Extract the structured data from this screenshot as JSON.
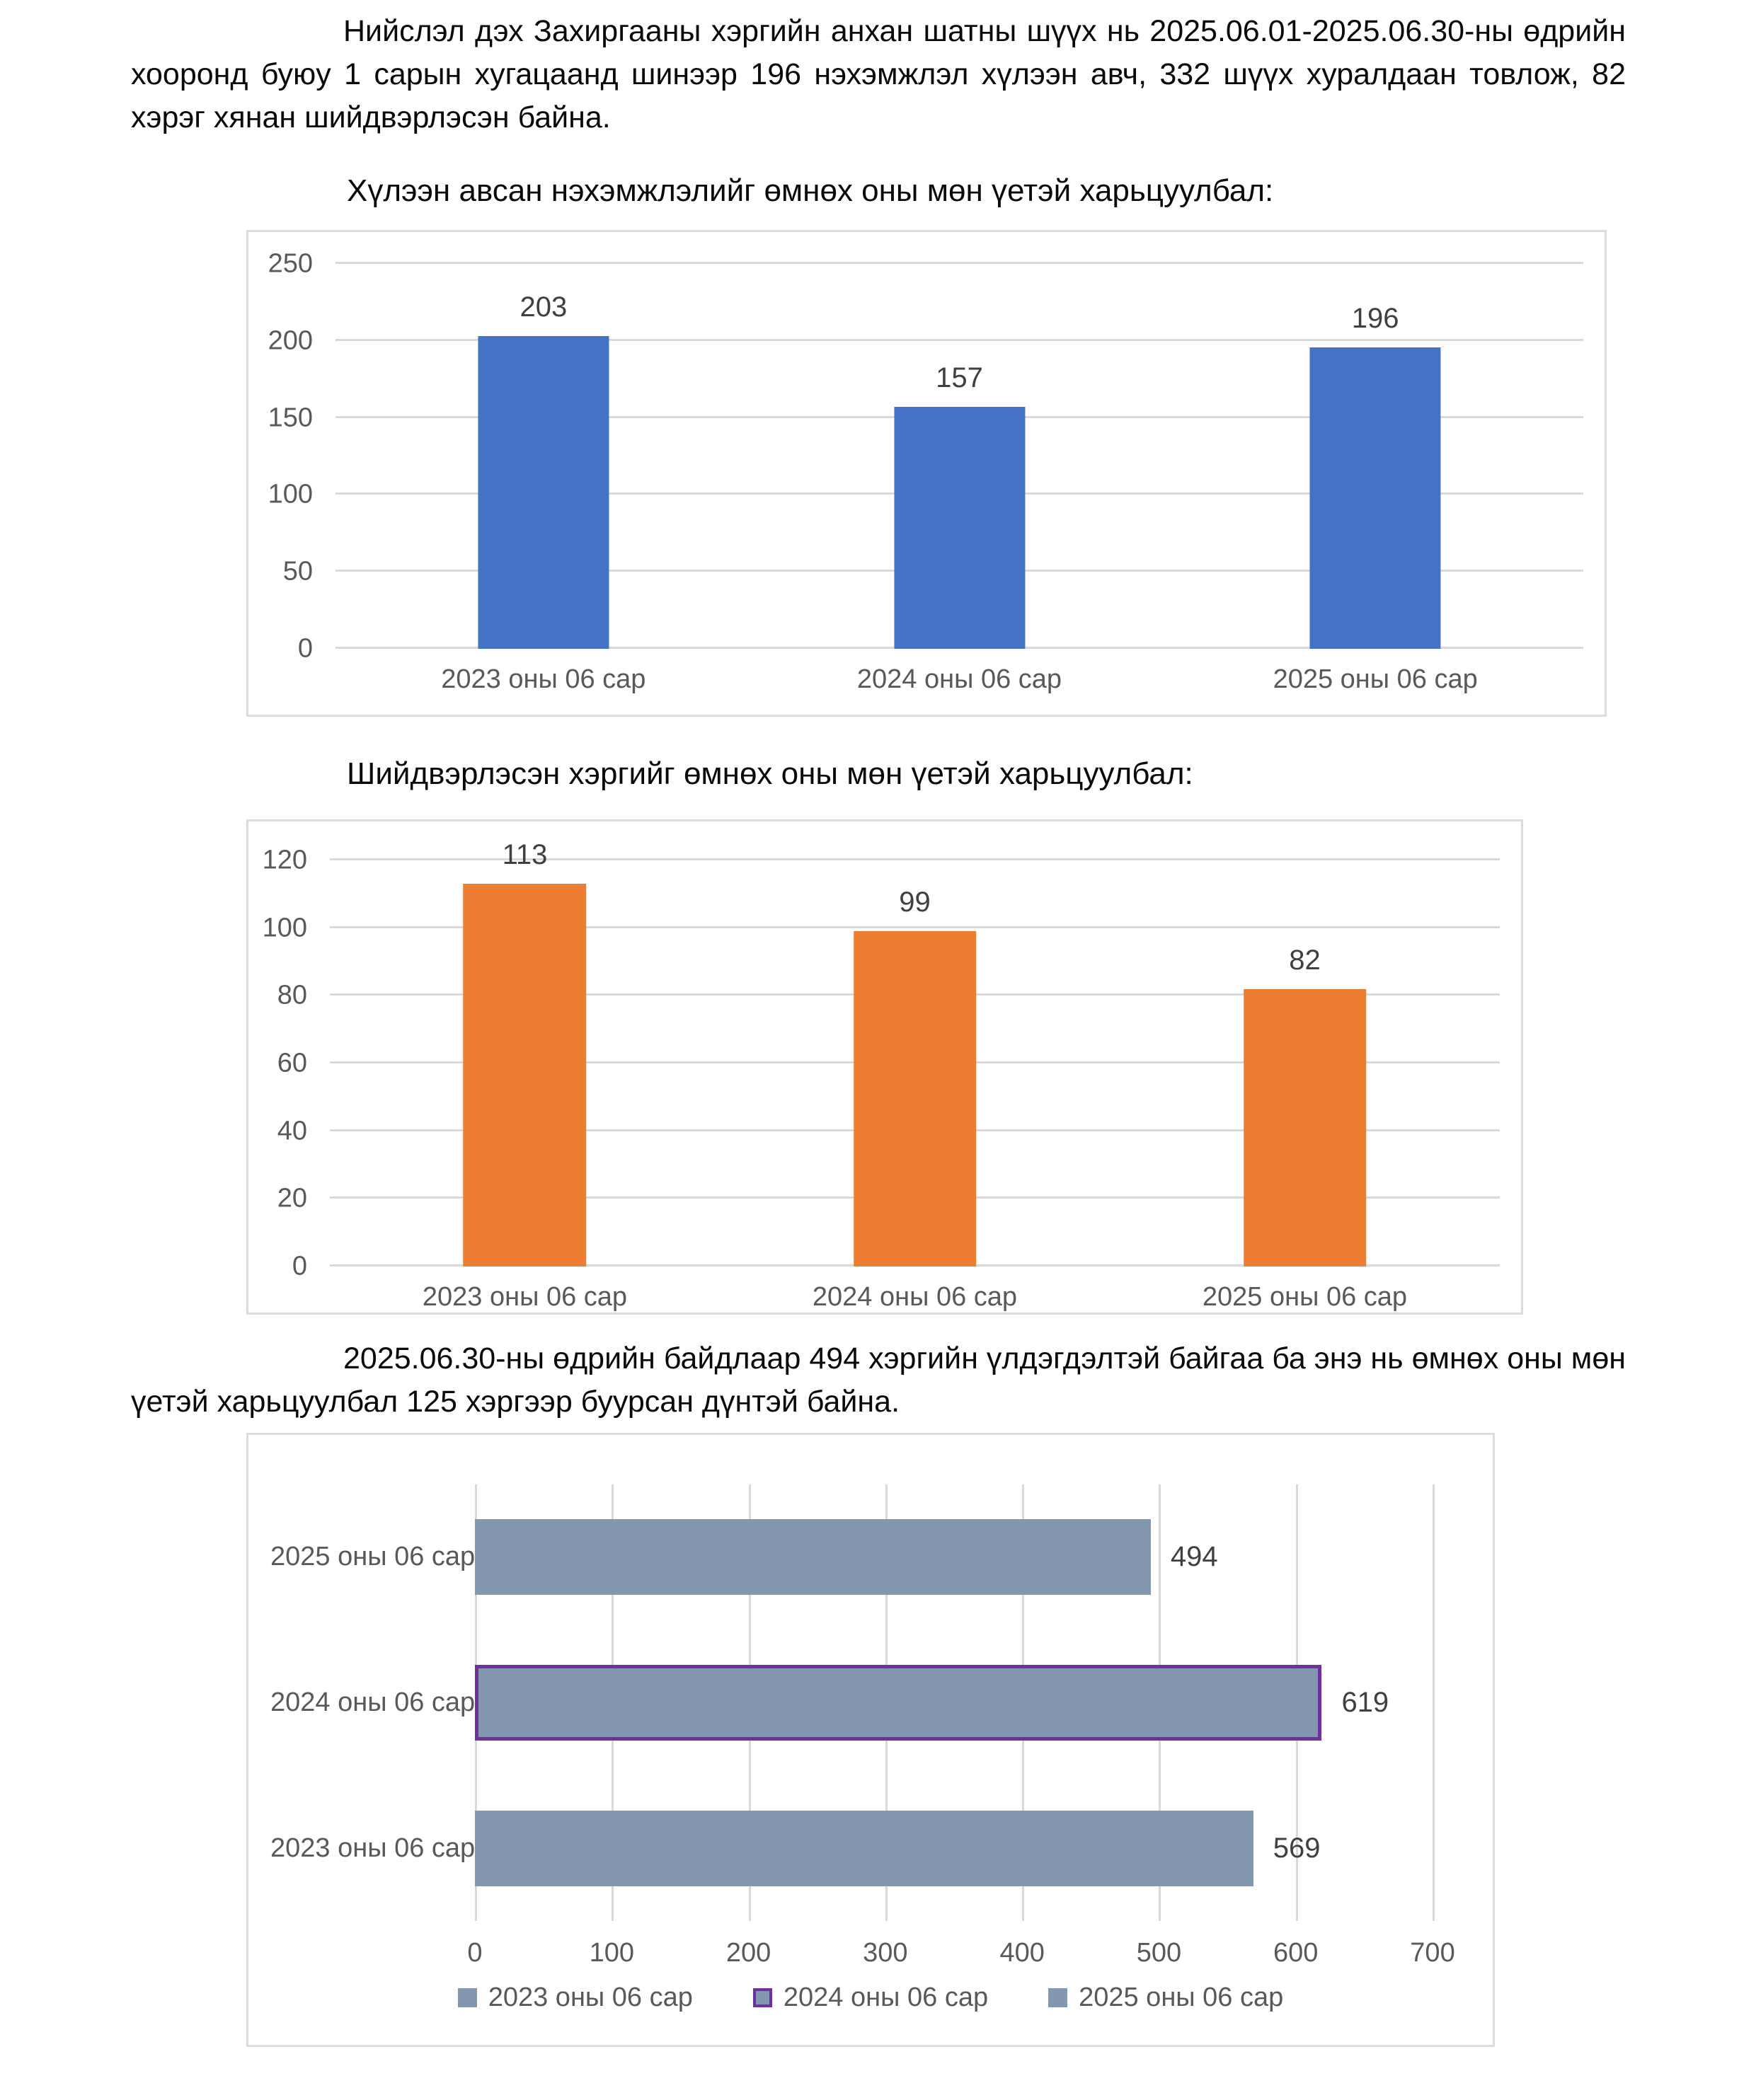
{
  "document": {
    "paragraph1": "Нийслэл дэх Захиргааны хэргийн анхан шатны шүүх нь 2025.06.01-2025.06.30-ны өдрийн хооронд буюу 1 сарын хугацаанд шинээр 196 нэхэмжлэл хүлээн авч, 332 шүүх хуралдаан товлож, 82 хэрэг хянан шийдвэрлэсэн байна.",
    "heading1": "Хүлээн авсан нэхэмжлэлийг өмнөх оны мөн үетэй харьцуулбал:",
    "heading2": "Шийдвэрлэсэн хэргийг өмнөх оны мөн үетэй харьцуулбал:",
    "paragraph2": "2025.06.30-ны өдрийн байдлаар 494 хэргийн үлдэгдэлтэй байгаа ба энэ нь өмнөх оны мөн үетэй харьцуулбал 125 хэргээр буурсан дүнтэй байна."
  },
  "chart_data": [
    {
      "type": "bar",
      "orientation": "vertical",
      "title": "Хүлээн авсан нэхэмжлэлийг өмнөх оны мөн үетэй харьцуулбал",
      "categories": [
        "2023 оны 06 сар",
        "2024 оны 06 сар",
        "2025 оны 06 сар"
      ],
      "values": [
        203,
        157,
        196
      ],
      "ylim": [
        0,
        250
      ],
      "yticks": [
        0,
        50,
        100,
        150,
        200,
        250
      ],
      "grid": true,
      "data_labels": true,
      "bar_color": "#4472C4",
      "axis_text_color": "#595959",
      "data_label_color": "#404040"
    },
    {
      "type": "bar",
      "orientation": "vertical",
      "title": "Шийдвэрлэсэн хэргийг өмнөх оны мөн үетэй харьцуулбал",
      "categories": [
        "2023 оны 06 сар",
        "2024 оны 06 сар",
        "2025 оны 06 сар"
      ],
      "values": [
        113,
        99,
        82
      ],
      "ylim": [
        0,
        120
      ],
      "yticks": [
        0,
        20,
        40,
        60,
        80,
        100,
        120
      ],
      "grid": true,
      "data_labels": true,
      "bar_color": "#ED7D31",
      "axis_text_color": "#595959",
      "data_label_color": "#404040"
    },
    {
      "type": "bar",
      "orientation": "horizontal",
      "categories": [
        "2025 оны 06 сар",
        "2024 оны 06 сар",
        "2023 оны 06 сар"
      ],
      "values": [
        494,
        619,
        569
      ],
      "xlim": [
        0,
        700
      ],
      "xticks": [
        0,
        100,
        200,
        300,
        400,
        500,
        600,
        700
      ],
      "grid": true,
      "data_labels": true,
      "bar_color": "#8497B0",
      "bar_border_colors": [
        null,
        "#7030A0",
        null
      ],
      "axis_text_color": "#595959",
      "data_label_color": "#404040",
      "legend": {
        "position": "bottom",
        "items": [
          {
            "label": "2023 оны 06 сар",
            "fill": "#8497B0"
          },
          {
            "label": "2024 оны 06 сар",
            "fill": "#8497B0",
            "border": "#7030A0"
          },
          {
            "label": "2025 оны 06 сар",
            "fill": "#8497B0"
          }
        ]
      }
    }
  ]
}
